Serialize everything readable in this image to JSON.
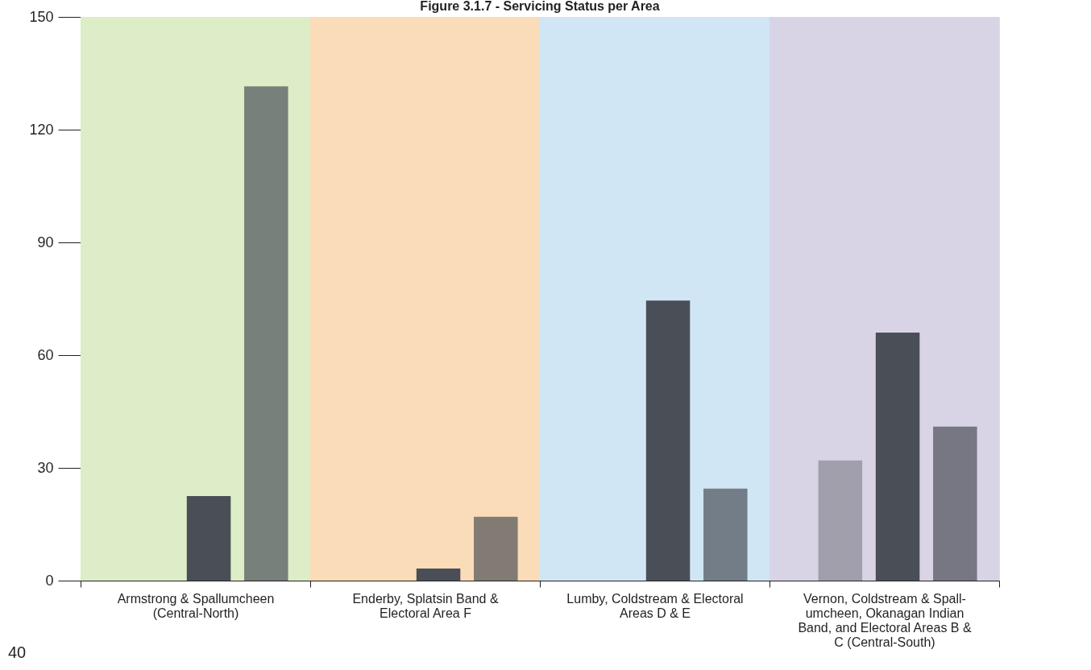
{
  "chart_data": {
    "type": "bar",
    "title": "Figure 3.1.7 - Servicing Status per Area",
    "categories": [
      "Armstrong & Spallumcheen\n(Central-North)",
      "Enderby, Splatsin Band &\nElectoral Area F",
      "Lumby, Coldstream & Electoral\nAreas D & E",
      "Vernon, Coldstream & Spall-\numcheen, Okanagan Indian\nBand, and Electoral Areas B &\nC (Central-South)"
    ],
    "series": [
      {
        "colors": [
          "#a09fab",
          "#a09fab",
          "#a09fab",
          "#a09fab"
        ],
        "values": [
          null,
          null,
          null,
          32
        ]
      },
      {
        "color": "#4a4f57",
        "values": [
          22.5,
          3.2,
          74.5,
          66
        ]
      },
      {
        "colors": [
          "#77807a",
          "#817b74",
          "#737d88",
          "#777783"
        ],
        "values": [
          131.5,
          17,
          24.5,
          41
        ]
      }
    ],
    "bands": [
      {
        "axis": "x",
        "from": "Armstrong & Spallumcheen\n(Central-North)",
        "to": "Armstrong & Spallumcheen\n(Central-North)",
        "color": "#dcedc8"
      },
      {
        "axis": "x",
        "from": "Enderby, Splatsin Band &\nElectoral Area F",
        "to": "Enderby, Splatsin Band &\nElectoral Area F",
        "color": "#fadcb9"
      },
      {
        "axis": "x",
        "from": "Lumby, Coldstream & Electoral\nAreas D & E",
        "to": "Lumby, Coldstream & Electoral\nAreas D & E",
        "color": "#d0e6f5"
      },
      {
        "axis": "x",
        "from": "Vernon, Coldstream & Spall-\numcheen, Okanagan Indian\nBand, and Electoral Areas B &\nC (Central-South)",
        "to": "Vernon, Coldstream & Spall-\numcheen, Okanagan Indian\nBand, and Electoral Areas B &\nC (Central-South)",
        "color": "#d9d3e6"
      }
    ],
    "ylim": [
      0,
      150
    ],
    "yticks": [
      0,
      30,
      60,
      90,
      120,
      150
    ],
    "annotations": [
      "40"
    ]
  }
}
